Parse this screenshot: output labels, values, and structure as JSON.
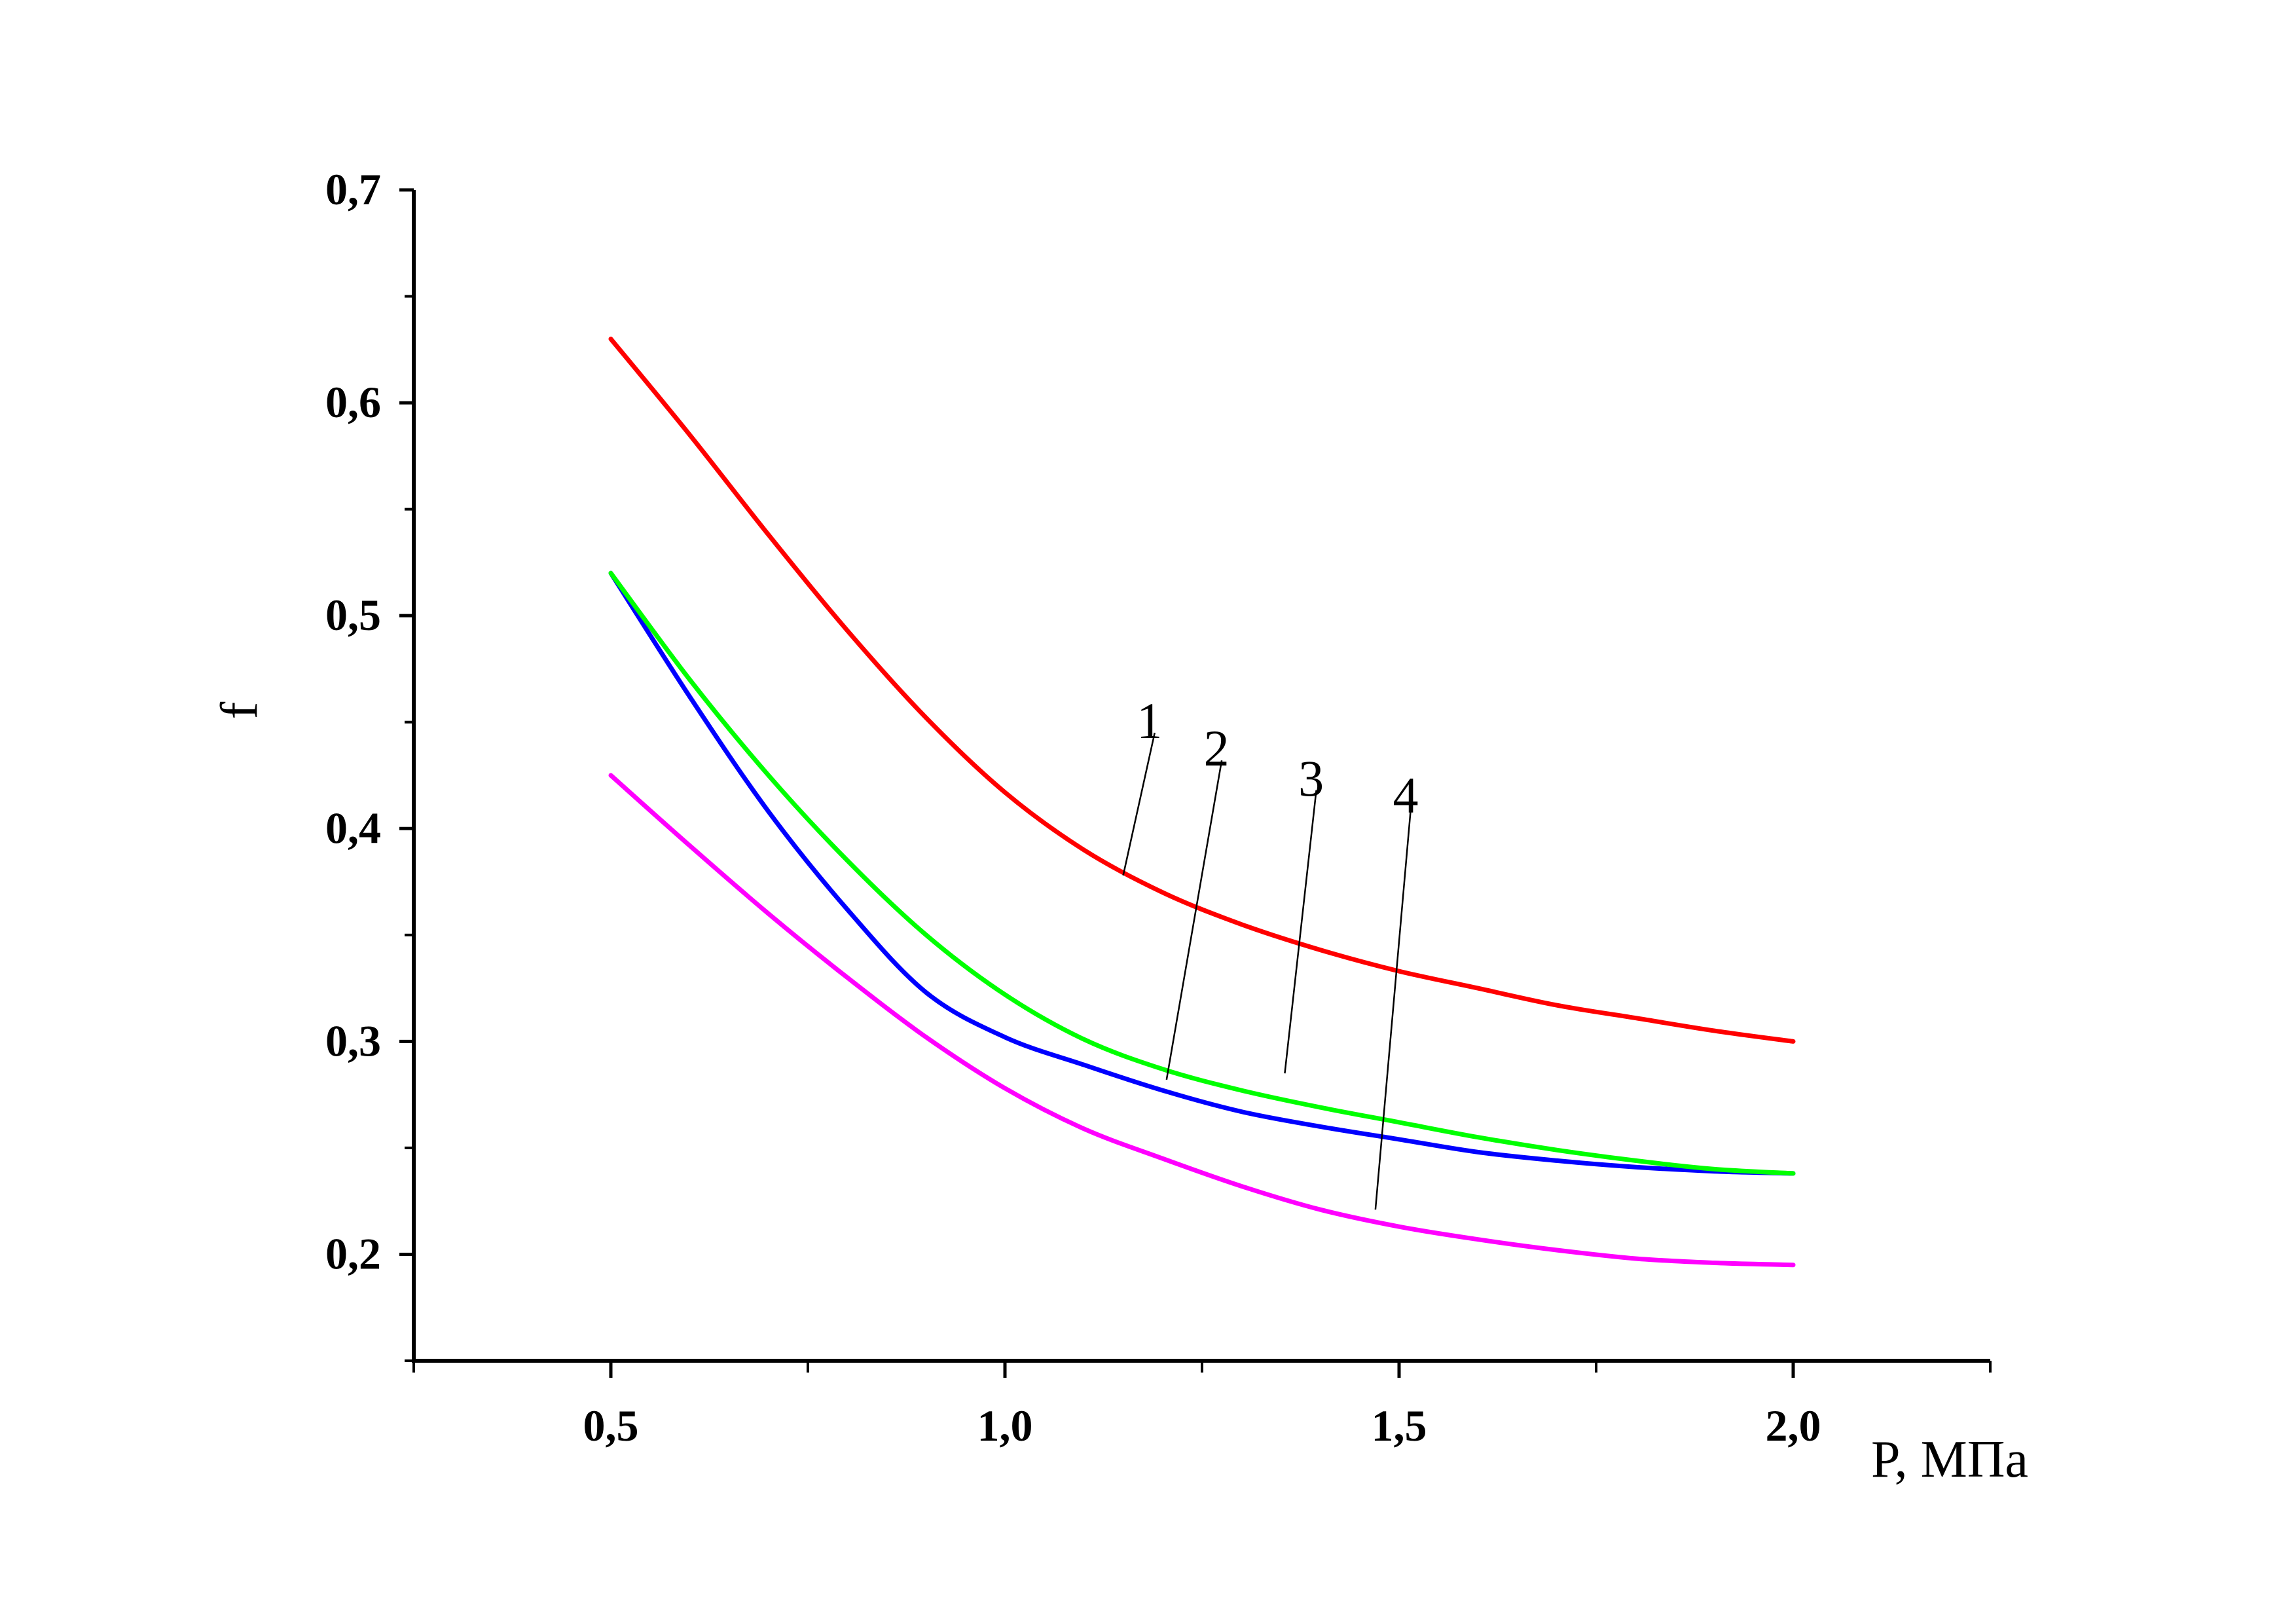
{
  "chart_data": {
    "type": "line",
    "xlabel": "P, МПа",
    "ylabel": "f",
    "xlim": [
      0.25,
      2.25
    ],
    "ylim": [
      0.15,
      0.7
    ],
    "x_ticks": [
      {
        "value": 0.5,
        "label": "0,5"
      },
      {
        "value": 1.0,
        "label": "1,0"
      },
      {
        "value": 1.5,
        "label": "1,5"
      },
      {
        "value": 2.0,
        "label": "2,0"
      }
    ],
    "x_minor_ticks": [
      0.25,
      0.75,
      1.25,
      1.75,
      2.25
    ],
    "y_ticks": [
      {
        "value": 0.2,
        "label": "0,2"
      },
      {
        "value": 0.3,
        "label": "0,3"
      },
      {
        "value": 0.4,
        "label": "0,4"
      },
      {
        "value": 0.5,
        "label": "0,5"
      },
      {
        "value": 0.6,
        "label": "0,6"
      },
      {
        "value": 0.7,
        "label": "0,7"
      }
    ],
    "y_minor_ticks": [
      0.15,
      0.25,
      0.35,
      0.45,
      0.55,
      0.65
    ],
    "x": [
      0.5,
      0.6,
      0.7,
      0.8,
      0.9,
      1.0,
      1.1,
      1.2,
      1.3,
      1.4,
      1.5,
      1.6,
      1.7,
      1.8,
      1.9,
      2.0
    ],
    "series": [
      {
        "name": "1",
        "color": "#ff0000",
        "values": [
          0.63,
          0.585,
          0.538,
          0.493,
          0.452,
          0.417,
          0.39,
          0.37,
          0.355,
          0.343,
          0.333,
          0.325,
          0.317,
          0.311,
          0.305,
          0.3
        ]
      },
      {
        "name": "2",
        "color": "#0000ff",
        "values": [
          0.52,
          0.462,
          0.408,
          0.362,
          0.323,
          0.302,
          0.289,
          0.277,
          0.267,
          0.26,
          0.254,
          0.248,
          0.244,
          0.241,
          0.239,
          0.238
        ]
      },
      {
        "name": "3",
        "color": "#00ff00",
        "values": [
          0.52,
          0.47,
          0.425,
          0.385,
          0.35,
          0.322,
          0.301,
          0.287,
          0.277,
          0.269,
          0.262,
          0.255,
          0.249,
          0.244,
          0.24,
          0.238
        ]
      },
      {
        "name": "4",
        "color": "#ff00ff",
        "values": [
          0.425,
          0.392,
          0.36,
          0.33,
          0.302,
          0.278,
          0.259,
          0.245,
          0.232,
          0.221,
          0.213,
          0.207,
          0.202,
          0.198,
          0.196,
          0.195
        ]
      }
    ],
    "annotations": [
      {
        "text": "1",
        "series": "1",
        "x": 1.15,
        "y": 0.378,
        "text_x": 1.19,
        "text_y": 0.445
      },
      {
        "text": "2",
        "series": "2",
        "x": 1.205,
        "y": 0.282,
        "text_x": 1.275,
        "text_y": 0.432
      },
      {
        "text": "3",
        "series": "3",
        "x": 1.355,
        "y": 0.285,
        "text_x": 1.395,
        "text_y": 0.418
      },
      {
        "text": "4",
        "series": "4",
        "x": 1.47,
        "y": 0.221,
        "text_x": 1.515,
        "text_y": 0.41
      }
    ]
  }
}
